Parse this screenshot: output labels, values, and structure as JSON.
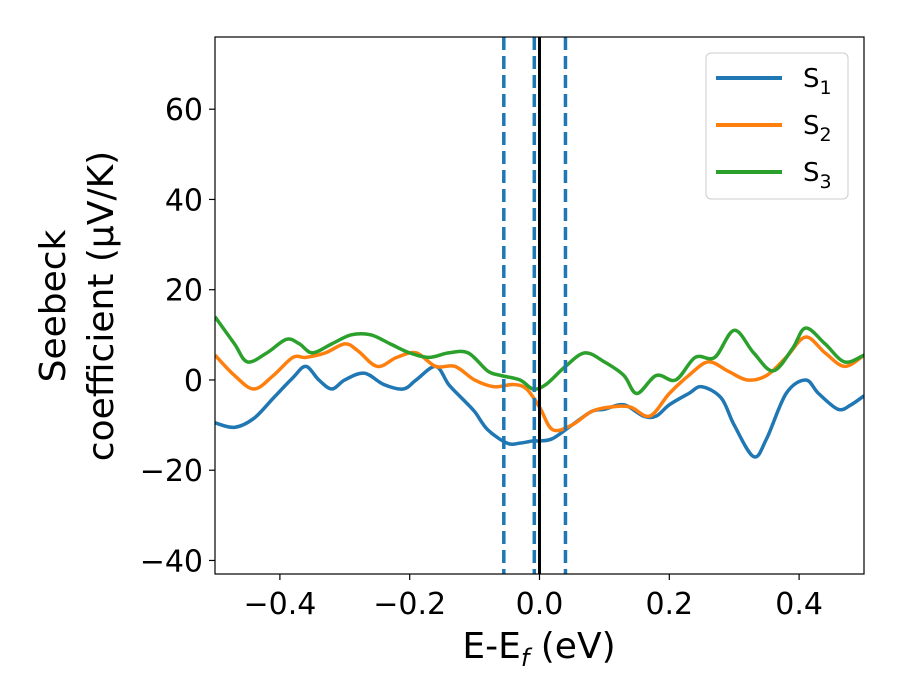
{
  "chart_data": {
    "type": "line",
    "xlabel": "E-E",
    "xlabel_sub": "f",
    "xlabel_unit": " (eV)",
    "ylabel_line1": "Seebeck",
    "ylabel_line2": "coefficient  (μV/K)",
    "xlim": [
      -0.5,
      0.5
    ],
    "ylim": [
      -43,
      76
    ],
    "xticks": [
      -0.4,
      -0.2,
      0.0,
      0.2,
      0.4
    ],
    "xtick_labels": [
      "−0.4",
      "−0.2",
      "0.0",
      "0.2",
      "0.4"
    ],
    "yticks": [
      -40,
      -20,
      0,
      20,
      40,
      60
    ],
    "ytick_labels": [
      "−40",
      "−20",
      "0",
      "20",
      "40",
      "60"
    ],
    "grid": false,
    "legend_position": "top-right",
    "vlines": [
      {
        "x": -0.055,
        "style": "dashed",
        "color": "#1f77b4"
      },
      {
        "x": -0.008,
        "style": "dashed",
        "color": "#1f77b4"
      },
      {
        "x": 0.04,
        "style": "dashed",
        "color": "#1f77b4"
      },
      {
        "x": 0.0,
        "style": "solid",
        "color": "#000000"
      }
    ],
    "series": [
      {
        "name": "S",
        "sub": "1",
        "color": "#1f77b4",
        "x": [
          -0.5,
          -0.47,
          -0.44,
          -0.41,
          -0.38,
          -0.36,
          -0.34,
          -0.32,
          -0.3,
          -0.27,
          -0.24,
          -0.21,
          -0.19,
          -0.16,
          -0.14,
          -0.12,
          -0.1,
          -0.08,
          -0.05,
          -0.03,
          -0.01,
          0.0,
          0.02,
          0.05,
          0.08,
          0.1,
          0.13,
          0.16,
          0.18,
          0.2,
          0.23,
          0.25,
          0.28,
          0.3,
          0.33,
          0.35,
          0.38,
          0.41,
          0.43,
          0.46,
          0.48,
          0.5
        ],
        "y": [
          -9.5,
          -10.5,
          -8.5,
          -4,
          0.5,
          3,
          0,
          -2,
          0,
          1.5,
          -1,
          -2,
          0,
          3,
          -1,
          -4,
          -7,
          -11,
          -14,
          -14,
          -13.5,
          -13.5,
          -13,
          -10,
          -7,
          -6.5,
          -5.5,
          -8,
          -8,
          -5.5,
          -3,
          -1.5,
          -4,
          -10,
          -17,
          -13,
          -3,
          0,
          -3,
          -6.5,
          -5.5,
          -3.5
        ]
      },
      {
        "name": "S",
        "sub": "2",
        "color": "#ff7f0e",
        "x": [
          -0.5,
          -0.47,
          -0.44,
          -0.41,
          -0.38,
          -0.36,
          -0.33,
          -0.3,
          -0.28,
          -0.25,
          -0.22,
          -0.19,
          -0.16,
          -0.13,
          -0.1,
          -0.07,
          -0.04,
          -0.02,
          0.0,
          0.02,
          0.05,
          0.08,
          0.11,
          0.14,
          0.17,
          0.2,
          0.23,
          0.26,
          0.29,
          0.32,
          0.35,
          0.38,
          0.41,
          0.44,
          0.47,
          0.5
        ],
        "y": [
          5.5,
          1,
          -2,
          1,
          5,
          5,
          6,
          8,
          6.5,
          3,
          5,
          6,
          3,
          3,
          0,
          -1.5,
          -1,
          -2,
          -6,
          -11,
          -10,
          -7,
          -6,
          -6,
          -8,
          -3,
          1,
          4,
          2,
          0,
          1,
          5,
          9.5,
          6,
          3,
          5.5
        ]
      },
      {
        "name": "S",
        "sub": "3",
        "color": "#2ca02c",
        "x": [
          -0.5,
          -0.47,
          -0.45,
          -0.42,
          -0.39,
          -0.37,
          -0.35,
          -0.32,
          -0.29,
          -0.26,
          -0.23,
          -0.2,
          -0.17,
          -0.14,
          -0.11,
          -0.08,
          -0.06,
          -0.03,
          -0.01,
          0.01,
          0.04,
          0.07,
          0.1,
          0.13,
          0.15,
          0.18,
          0.21,
          0.24,
          0.27,
          0.3,
          0.33,
          0.36,
          0.39,
          0.41,
          0.44,
          0.47,
          0.5
        ],
        "y": [
          14,
          8,
          4,
          6,
          9,
          8,
          6,
          8,
          10,
          10,
          8,
          6,
          5,
          6,
          6,
          2,
          1,
          0,
          -2,
          -1,
          3,
          6,
          4,
          1,
          -3,
          1,
          0,
          5,
          5,
          11,
          6,
          2,
          7,
          11.5,
          8,
          4,
          5.5
        ]
      }
    ]
  }
}
